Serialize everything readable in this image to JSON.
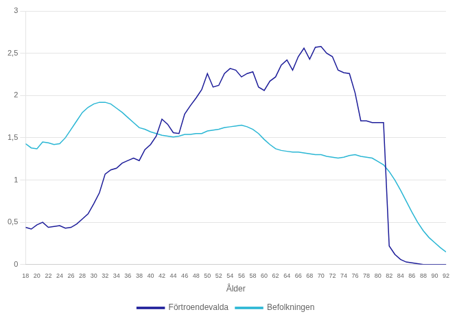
{
  "chart_data": {
    "type": "line",
    "x": [
      18,
      19,
      20,
      21,
      22,
      23,
      24,
      25,
      26,
      27,
      28,
      29,
      30,
      31,
      32,
      33,
      34,
      35,
      36,
      37,
      38,
      39,
      40,
      41,
      42,
      43,
      44,
      45,
      46,
      47,
      48,
      49,
      50,
      51,
      52,
      53,
      54,
      55,
      56,
      57,
      58,
      59,
      60,
      61,
      62,
      63,
      64,
      65,
      66,
      67,
      68,
      69,
      70,
      71,
      72,
      73,
      74,
      75,
      76,
      77,
      78,
      79,
      80,
      81,
      82,
      83,
      84,
      85,
      86,
      87,
      88,
      89,
      90,
      91,
      92
    ],
    "series": [
      {
        "name": "Förtroendevalda",
        "color": "#1c1c99",
        "values": [
          0.44,
          0.42,
          0.47,
          0.5,
          0.44,
          0.45,
          0.46,
          0.43,
          0.44,
          0.48,
          0.54,
          0.6,
          0.72,
          0.85,
          1.07,
          1.12,
          1.14,
          1.2,
          1.23,
          1.26,
          1.23,
          1.36,
          1.42,
          1.52,
          1.72,
          1.66,
          1.56,
          1.55,
          1.78,
          1.88,
          1.97,
          2.07,
          2.26,
          2.1,
          2.12,
          2.26,
          2.32,
          2.3,
          2.22,
          2.26,
          2.28,
          2.1,
          2.06,
          2.17,
          2.22,
          2.36,
          2.42,
          2.3,
          2.46,
          2.56,
          2.43,
          2.57,
          2.58,
          2.5,
          2.46,
          2.3,
          2.27,
          2.26,
          2.03,
          1.7,
          1.7,
          1.68,
          1.68,
          1.68,
          0.22,
          0.12,
          0.06,
          0.03,
          0.02,
          0.01,
          0.0,
          0.0,
          0.0,
          0.0,
          0.0
        ]
      },
      {
        "name": "Befolkningen",
        "color": "#29b6d4",
        "values": [
          1.43,
          1.38,
          1.37,
          1.45,
          1.44,
          1.42,
          1.43,
          1.5,
          1.6,
          1.7,
          1.8,
          1.86,
          1.9,
          1.92,
          1.92,
          1.9,
          1.85,
          1.8,
          1.74,
          1.68,
          1.62,
          1.6,
          1.57,
          1.55,
          1.53,
          1.52,
          1.51,
          1.52,
          1.54,
          1.54,
          1.55,
          1.55,
          1.58,
          1.59,
          1.6,
          1.62,
          1.63,
          1.64,
          1.65,
          1.63,
          1.6,
          1.55,
          1.48,
          1.42,
          1.37,
          1.35,
          1.34,
          1.33,
          1.33,
          1.32,
          1.31,
          1.3,
          1.3,
          1.28,
          1.27,
          1.26,
          1.27,
          1.29,
          1.3,
          1.28,
          1.27,
          1.26,
          1.22,
          1.18,
          1.1,
          1.0,
          0.88,
          0.75,
          0.62,
          0.5,
          0.4,
          0.32,
          0.26,
          0.2,
          0.15
        ]
      }
    ],
    "xlabel": "Ålder",
    "xlim": [
      18,
      92
    ],
    "xticks": [
      18,
      20,
      22,
      24,
      26,
      28,
      30,
      32,
      34,
      36,
      38,
      40,
      42,
      44,
      46,
      48,
      50,
      52,
      54,
      56,
      58,
      60,
      62,
      64,
      66,
      68,
      70,
      72,
      74,
      76,
      78,
      80,
      82,
      84,
      86,
      88,
      90,
      92
    ],
    "ylim": [
      0,
      3
    ],
    "yticks": [
      0,
      {
        "value": 0.5,
        "label": "0,5"
      },
      1,
      {
        "value": 1.5,
        "label": "1,5"
      },
      2,
      {
        "value": 2.5,
        "label": "2,5"
      },
      3
    ],
    "grid": true,
    "legend": "bottom"
  }
}
